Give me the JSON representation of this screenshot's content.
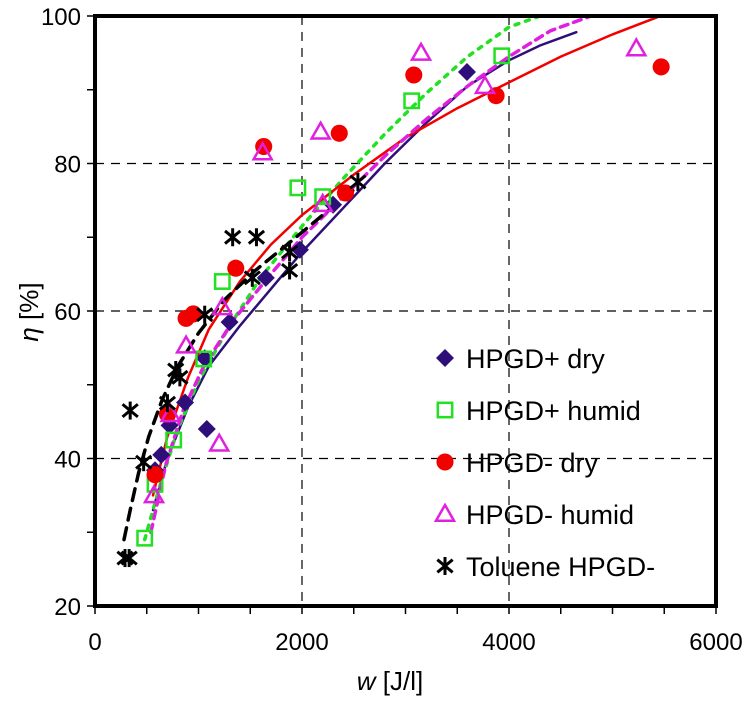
{
  "chart_data": {
    "type": "scatter",
    "title": "",
    "xlabel": "w [J/l]",
    "xlabel_var": "w",
    "xlabel_unit": " [J/l]",
    "ylabel": "η [%]",
    "ylabel_var": "η",
    "ylabel_unit": " [%]",
    "xlim": [
      0,
      6000
    ],
    "ylim": [
      20,
      100
    ],
    "x_ticks": [
      0,
      2000,
      4000,
      6000
    ],
    "x_tick_labels": [
      "0",
      "2000",
      "4000",
      "6000"
    ],
    "x_minor_step": 500,
    "y_ticks": [
      20,
      40,
      60,
      80,
      100
    ],
    "y_tick_labels": [
      "20",
      "40",
      "60",
      "80",
      "100"
    ],
    "y_minor_step": 10,
    "grid": "dashed major lines",
    "legend_position": "lower-right inside",
    "series": [
      {
        "name": "HPGD+ dry",
        "marker": "diamond",
        "color": "#2E0F7A",
        "fit_style": "solid",
        "points": [
          [
            580,
            38.4
          ],
          [
            640,
            40.5
          ],
          [
            720,
            44.5
          ],
          [
            870,
            47.6
          ],
          [
            1060,
            53.6
          ],
          [
            1080,
            44.0
          ],
          [
            1300,
            58.5
          ],
          [
            1650,
            64.5
          ],
          [
            1980,
            68.3
          ],
          [
            2300,
            74.4
          ],
          [
            3594,
            92.4
          ]
        ],
        "fit": [
          [
            560,
            33
          ],
          [
            700,
            40
          ],
          [
            900,
            47
          ],
          [
            1100,
            52.5
          ],
          [
            1400,
            58
          ],
          [
            1700,
            63
          ],
          [
            2000,
            68
          ],
          [
            2400,
            74
          ],
          [
            2800,
            80
          ],
          [
            3200,
            85.5
          ],
          [
            3600,
            90.5
          ],
          [
            4000,
            94
          ],
          [
            4300,
            96
          ],
          [
            4650,
            97.8
          ]
        ]
      },
      {
        "name": "HPGD+ humid",
        "marker": "square-open",
        "color": "#22E022",
        "fit_style": "dotted",
        "points": [
          [
            480,
            29.2
          ],
          [
            580,
            36.5
          ],
          [
            760,
            42.5
          ],
          [
            1050,
            53.5
          ],
          [
            1230,
            64.0
          ],
          [
            1960,
            76.7
          ],
          [
            2200,
            75.5
          ],
          [
            3060,
            88.5
          ],
          [
            3930,
            94.6
          ]
        ],
        "fit": [
          [
            480,
            29
          ],
          [
            620,
            36
          ],
          [
            800,
            44
          ],
          [
            1000,
            50.5
          ],
          [
            1300,
            58
          ],
          [
            1600,
            64.5
          ],
          [
            2000,
            71.5
          ],
          [
            2400,
            78
          ],
          [
            2800,
            84
          ],
          [
            3200,
            89.5
          ],
          [
            3600,
            94.5
          ],
          [
            4000,
            98.5
          ],
          [
            4400,
            100.5
          ]
        ]
      },
      {
        "name": "HPGD- dry",
        "marker": "circle-filled",
        "color": "#F20000",
        "fit_style": "solid",
        "points": [
          [
            580,
            37.8
          ],
          [
            700,
            46.0
          ],
          [
            880,
            59.0
          ],
          [
            950,
            59.6
          ],
          [
            1360,
            65.8
          ],
          [
            1630,
            82.3
          ],
          [
            2360,
            84.1
          ],
          [
            2420,
            76.0
          ],
          [
            3080,
            92.0
          ],
          [
            3875,
            89.2
          ],
          [
            5470,
            93.1
          ]
        ],
        "fit": [
          [
            560,
            35
          ],
          [
            700,
            43
          ],
          [
            900,
            51
          ],
          [
            1100,
            57.5
          ],
          [
            1400,
            64
          ],
          [
            1700,
            69
          ],
          [
            2000,
            73
          ],
          [
            2500,
            78.5
          ],
          [
            3000,
            83.5
          ],
          [
            3500,
            87.5
          ],
          [
            4000,
            91
          ],
          [
            4500,
            94.5
          ],
          [
            5000,
            97.5
          ],
          [
            5500,
            100.2
          ]
        ]
      },
      {
        "name": "HPGD- humid",
        "marker": "triangle-open",
        "color": "#E020E0",
        "fit_style": "dashed-dotted",
        "points": [
          [
            570,
            35.0
          ],
          [
            730,
            46.0
          ],
          [
            880,
            55.3
          ],
          [
            1230,
            60.5
          ],
          [
            1200,
            42.0
          ],
          [
            1620,
            81.5
          ],
          [
            2180,
            84.3
          ],
          [
            2200,
            74.5
          ],
          [
            3150,
            95.0
          ],
          [
            3768,
            90.5
          ],
          [
            5230,
            95.6
          ]
        ],
        "fit": [
          [
            540,
            30
          ],
          [
            680,
            39
          ],
          [
            850,
            46.5
          ],
          [
            1050,
            52.5
          ],
          [
            1350,
            59
          ],
          [
            1700,
            65
          ],
          [
            2000,
            70
          ],
          [
            2400,
            75.5
          ],
          [
            2800,
            81
          ],
          [
            3200,
            86
          ],
          [
            3600,
            90.5
          ],
          [
            4000,
            94.5
          ],
          [
            4400,
            98
          ],
          [
            4850,
            100.3
          ]
        ]
      },
      {
        "name": "Toluene HPGD-",
        "marker": "asterisk",
        "color": "#000000",
        "fit_style": "dashed",
        "points": [
          [
            290,
            26.5
          ],
          [
            330,
            26.5
          ],
          [
            340,
            46.5
          ],
          [
            470,
            39.5
          ],
          [
            700,
            47.5
          ],
          [
            780,
            52.0
          ],
          [
            820,
            51.0
          ],
          [
            1060,
            59.5
          ],
          [
            1330,
            70.0
          ],
          [
            1560,
            70.0
          ],
          [
            1520,
            64.5
          ],
          [
            1880,
            68.0
          ],
          [
            1880,
            65.5
          ],
          [
            2540,
            77.5
          ]
        ],
        "fit": [
          [
            280,
            29
          ],
          [
            340,
            33
          ],
          [
            420,
            38
          ],
          [
            520,
            43
          ],
          [
            650,
            48
          ],
          [
            800,
            52.5
          ],
          [
            1000,
            57
          ],
          [
            1250,
            61.5
          ],
          [
            1550,
            65.5
          ],
          [
            1900,
            69.5
          ],
          [
            2200,
            73
          ],
          [
            2550,
            77
          ]
        ]
      }
    ]
  }
}
